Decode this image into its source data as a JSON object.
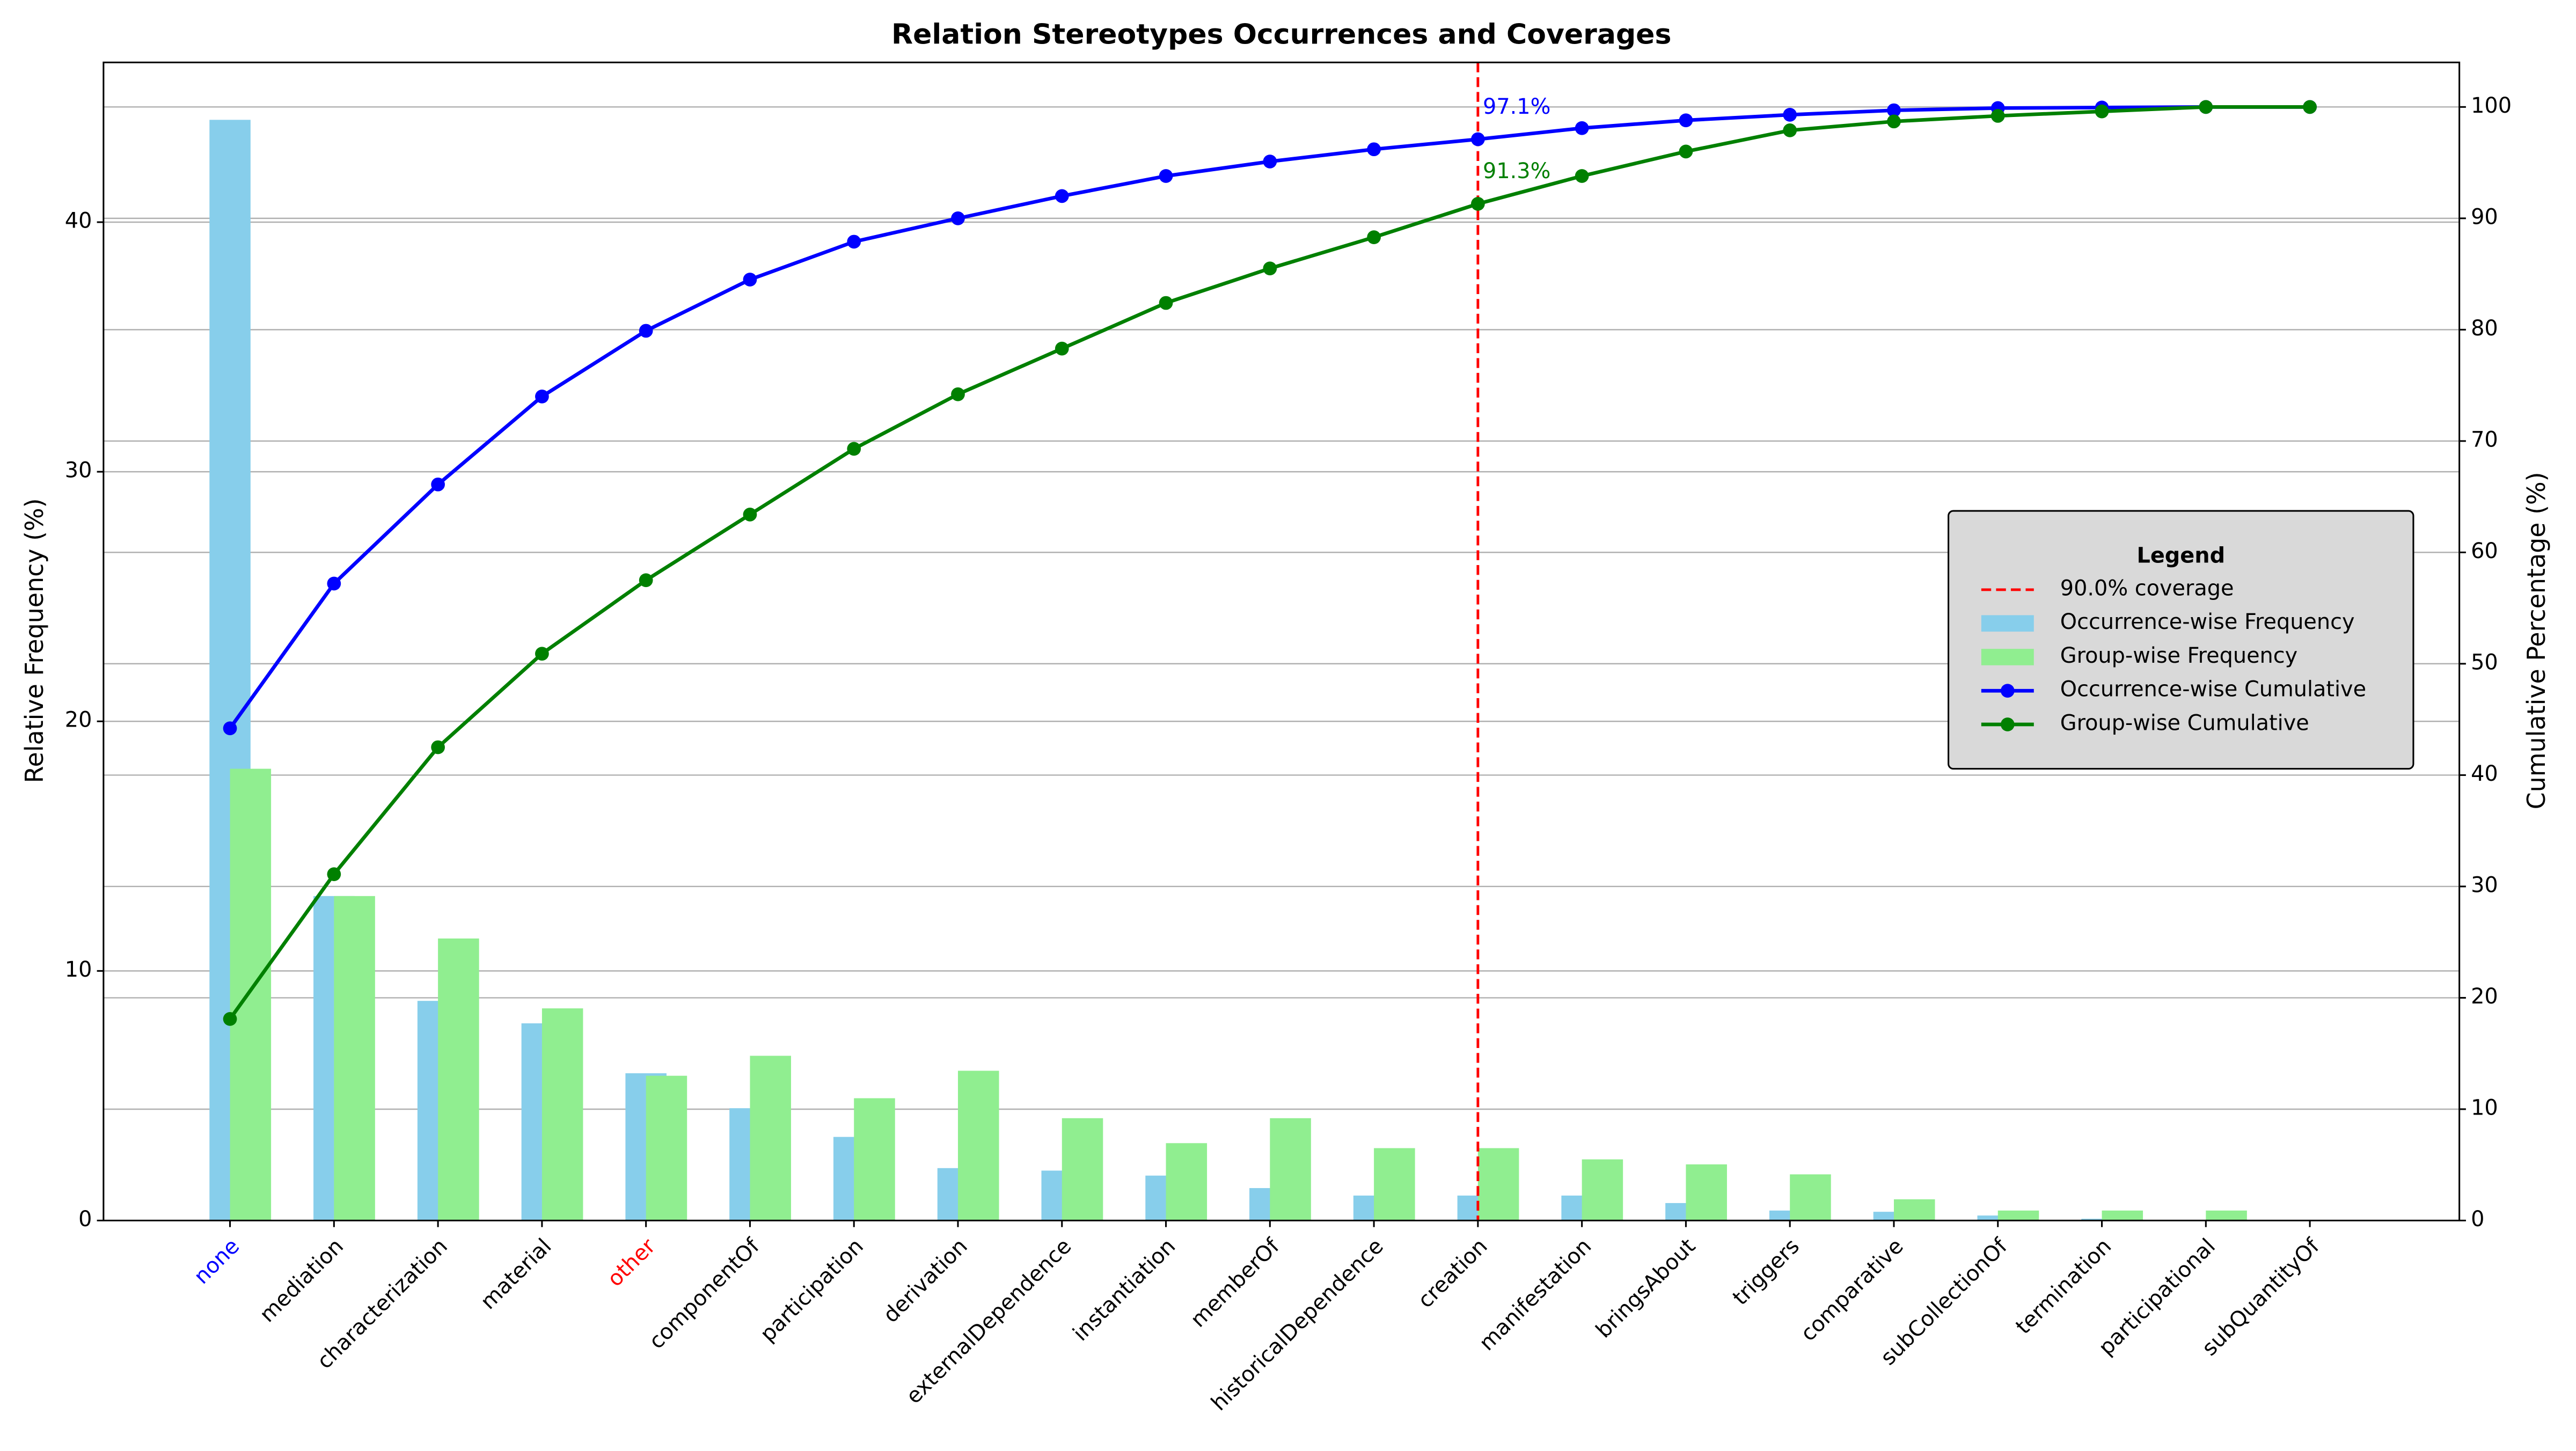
{
  "chart_data": {
    "type": "bar",
    "title": "Relation Stereotypes Occurrences and Coverages",
    "ylabel": "Relative Frequency (%)",
    "y2label": "Cumulative Percentage (%)",
    "categories": [
      "none",
      "mediation",
      "characterization",
      "material",
      "other",
      "componentOf",
      "participation",
      "derivation",
      "externalDependence",
      "instantiation",
      "memberOf",
      "historicalDependence",
      "creation",
      "manifestation",
      "bringsAbout",
      "triggers",
      "comparative",
      "subCollectionOf",
      "termination",
      "participational",
      "subQuantityOf"
    ],
    "category_colors": [
      "#0000ff",
      "#000000",
      "#000000",
      "#000000",
      "#ff0000",
      "#000000",
      "#000000",
      "#000000",
      "#000000",
      "#000000",
      "#000000",
      "#000000",
      "#000000",
      "#000000",
      "#000000",
      "#000000",
      "#000000",
      "#000000",
      "#000000",
      "#000000",
      "#000000"
    ],
    "series": [
      {
        "name": "Occurrence-wise Frequency",
        "type": "bar",
        "axis": "y",
        "color": "#87ceeb",
        "values": [
          44.1,
          13.0,
          8.8,
          7.9,
          5.9,
          4.5,
          3.35,
          2.1,
          2.0,
          1.8,
          1.3,
          1.0,
          1.0,
          1.0,
          0.7,
          0.4,
          0.35,
          0.2,
          0.07,
          0.02,
          0.01
        ]
      },
      {
        "name": "Group-wise Frequency",
        "type": "bar",
        "axis": "y",
        "color": "#90ee90",
        "values": [
          18.1,
          13.0,
          11.3,
          8.5,
          5.8,
          6.6,
          4.9,
          6.0,
          4.1,
          3.1,
          4.1,
          2.9,
          2.9,
          2.45,
          2.25,
          1.85,
          0.85,
          0.4,
          0.4,
          0.4,
          0
        ]
      },
      {
        "name": "Occurrence-wise Cumulative",
        "type": "line",
        "axis": "y2",
        "color": "#0000ff",
        "values": [
          44.2,
          57.2,
          66.1,
          74.0,
          79.9,
          84.5,
          87.9,
          90.0,
          92.0,
          93.8,
          95.1,
          96.2,
          97.1,
          98.1,
          98.8,
          99.3,
          99.7,
          99.9,
          99.95,
          100,
          100
        ]
      },
      {
        "name": "Group-wise Cumulative",
        "type": "line",
        "axis": "y2",
        "color": "#008000",
        "values": [
          18.1,
          31.1,
          42.5,
          50.9,
          57.5,
          63.4,
          69.3,
          74.2,
          78.3,
          82.4,
          85.5,
          88.3,
          91.3,
          93.8,
          96.0,
          97.9,
          98.7,
          99.2,
          99.6,
          100,
          100
        ]
      }
    ],
    "coverage_line": {
      "label": "90.0% coverage",
      "category": "creation",
      "color": "#ff0000"
    },
    "annotations": [
      {
        "text": "97.1%",
        "series": 2
      },
      {
        "text": "91.3%",
        "series": 3
      }
    ],
    "ylim": [
      0,
      46.4
    ],
    "yticks": [
      0,
      10,
      20,
      30,
      40
    ],
    "y2lim": [
      0,
      104
    ],
    "y2ticks": [
      0,
      10,
      20,
      30,
      40,
      50,
      60,
      70,
      80,
      90,
      100
    ],
    "grid": true,
    "legend_title": "Legend",
    "legend_position": "center right"
  }
}
